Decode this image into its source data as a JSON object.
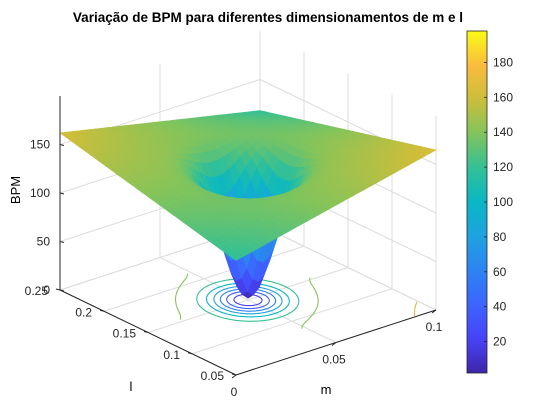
{
  "chart_data": {
    "type": "surface",
    "title": "Variação de BPM para diferentes dimensionamentos de m e l",
    "xlabel": "m",
    "ylabel": "l",
    "zlabel": "BPM",
    "x_ticks": [
      "0",
      "0.05",
      "0.1"
    ],
    "y_ticks": [
      "0.05",
      "0.1",
      "0.15",
      "0.2",
      "0.25"
    ],
    "z_ticks": [
      "0",
      "50",
      "100",
      "150"
    ],
    "xlim": [
      0,
      0.1
    ],
    "ylim": [
      0.05,
      0.25
    ],
    "zlim": [
      0,
      200
    ],
    "colorbar": {
      "ticks": [
        "20",
        "40",
        "60",
        "80",
        "100",
        "120",
        "140",
        "160",
        "180"
      ],
      "range": [
        2,
        198
      ],
      "colormap": "parula"
    },
    "surface_corner_values": {
      "m0_l0.05": 118,
      "m0.1_l0.05": 165,
      "m0_l0.25": 162,
      "m0.1_l0.25": 118,
      "center_minimum": 2
    },
    "contour_projection": true,
    "grid": true
  }
}
